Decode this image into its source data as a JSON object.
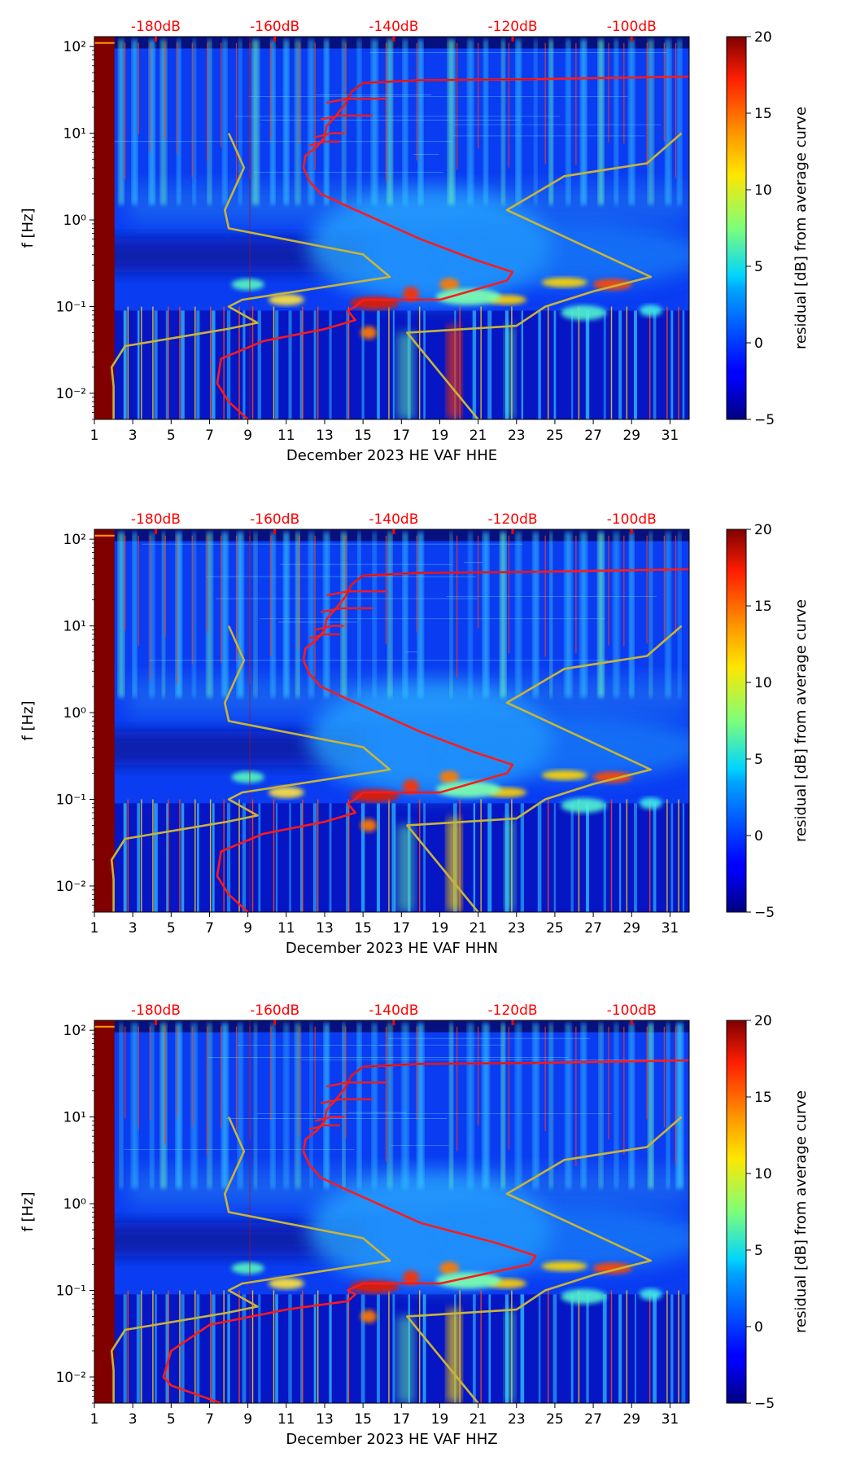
{
  "colors": {
    "frame": "#000000",
    "top_label": "#ff0000",
    "noise_model": "#ff1a1a",
    "peterson_model": "#c8b43a"
  },
  "chart_data": [
    {
      "type": "heatmap",
      "title": "",
      "xlabel": "December 2023 HE VAF  HHE",
      "ylabel": "f [Hz]",
      "xticks": [
        "1",
        "3",
        "5",
        "7",
        "9",
        "11",
        "13",
        "15",
        "17",
        "19",
        "21",
        "23",
        "25",
        "27",
        "29",
        "31"
      ],
      "yticks": [
        "10⁻²",
        "10⁻¹",
        "10⁰",
        "10¹",
        "10²"
      ],
      "top_labels": [
        "-180dB",
        "-160dB",
        "-140dB",
        "-120dB",
        "-100dB"
      ],
      "xlim": [
        1,
        32
      ],
      "ylim": [
        0.005,
        130
      ],
      "colorbar": {
        "label": "residual [dB] from average curve",
        "range": [
          -5,
          20
        ],
        "ticks": [
          "−5",
          "0",
          "5",
          "10",
          "15",
          "20"
        ]
      }
    },
    {
      "type": "heatmap",
      "title": "",
      "xlabel": "December 2023 HE VAF  HHN",
      "ylabel": "f [Hz]",
      "xticks": [
        "1",
        "3",
        "5",
        "7",
        "9",
        "11",
        "13",
        "15",
        "17",
        "19",
        "21",
        "23",
        "25",
        "27",
        "29",
        "31"
      ],
      "yticks": [
        "10⁻²",
        "10⁻¹",
        "10⁰",
        "10¹",
        "10²"
      ],
      "top_labels": [
        "-180dB",
        "-160dB",
        "-140dB",
        "-120dB",
        "-100dB"
      ],
      "xlim": [
        1,
        32
      ],
      "ylim": [
        0.005,
        130
      ],
      "colorbar": {
        "label": "residual [dB] from average curve",
        "range": [
          -5,
          20
        ],
        "ticks": [
          "−5",
          "0",
          "5",
          "10",
          "15",
          "20"
        ]
      }
    },
    {
      "type": "heatmap",
      "title": "",
      "xlabel": "December 2023 HE VAF  HHZ",
      "ylabel": "f [Hz]",
      "xticks": [
        "1",
        "3",
        "5",
        "7",
        "9",
        "11",
        "13",
        "15",
        "17",
        "19",
        "21",
        "23",
        "25",
        "27",
        "29",
        "31"
      ],
      "yticks": [
        "10⁻²",
        "10⁻¹",
        "10⁰",
        "10¹",
        "10²"
      ],
      "top_labels": [
        "-180dB",
        "-160dB",
        "-140dB",
        "-120dB",
        "-100dB"
      ],
      "xlim": [
        1,
        32
      ],
      "ylim": [
        0.005,
        130
      ],
      "colorbar": {
        "label": "residual [dB] from average curve",
        "range": [
          -5,
          20
        ],
        "ticks": [
          "−5",
          "0",
          "5",
          "10",
          "15",
          "20"
        ]
      }
    }
  ]
}
